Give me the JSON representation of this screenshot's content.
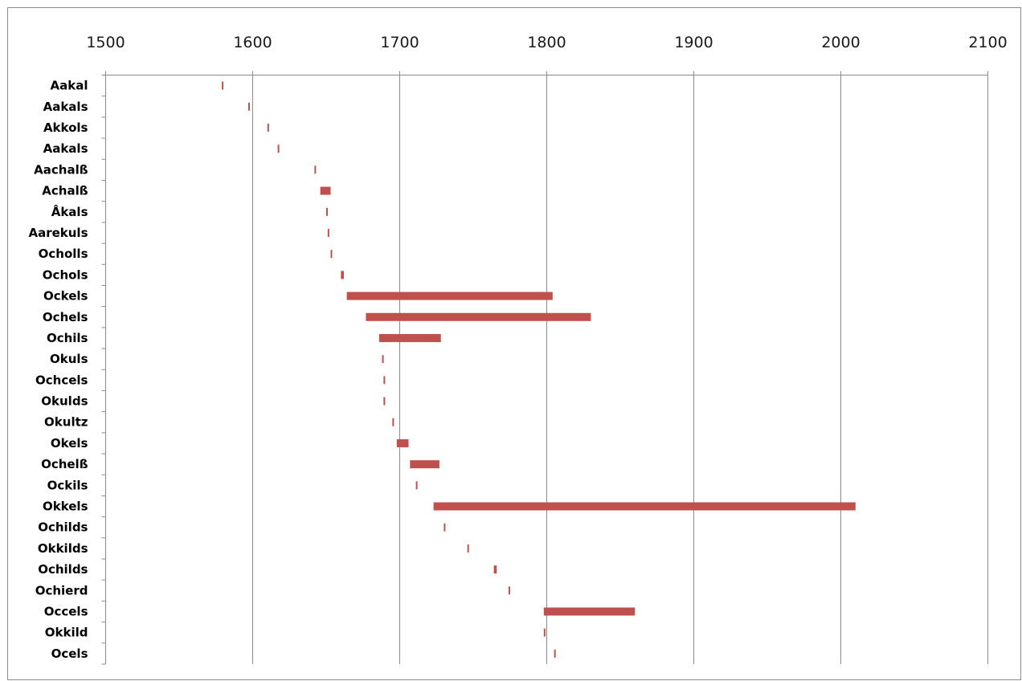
{
  "chart_data": {
    "type": "bar",
    "orientation": "horizontal-range",
    "title": "",
    "xlabel": "",
    "ylabel": "",
    "xlim": [
      1500,
      2100
    ],
    "x_ticks": [
      1500,
      1600,
      1700,
      1800,
      1900,
      2000,
      2100
    ],
    "x_tick_labels": [
      "1500",
      "1600",
      "1700",
      "1800",
      "1900",
      "2000",
      "2100"
    ],
    "grid": "vertical",
    "axis_position": "top",
    "bar_color": "#c0504d",
    "categories": [
      "Aakal",
      "Aakals",
      "Akkols",
      "Aakals",
      "Aachalß",
      "Achalß",
      "Åkals",
      "Aarekuls",
      "Ocholls",
      "Ochols",
      "Ockels",
      "Ochels",
      "Ochils",
      "Okuls",
      "Ochcels",
      "Okulds",
      "Okultz",
      "Okels",
      "Ochelß",
      "Ockils",
      "Okkels",
      "Ochilds",
      "Okkilds",
      "Ochilds",
      "Ochierd",
      "Occels",
      "Okkild",
      "Ocels"
    ],
    "ranges": [
      [
        1579,
        1580
      ],
      [
        1597,
        1598
      ],
      [
        1610,
        1611
      ],
      [
        1617,
        1618
      ],
      [
        1642,
        1643
      ],
      [
        1646,
        1653
      ],
      [
        1650,
        1651
      ],
      [
        1651,
        1652
      ],
      [
        1653,
        1654
      ],
      [
        1660,
        1662
      ],
      [
        1664,
        1804
      ],
      [
        1677,
        1830
      ],
      [
        1686,
        1728
      ],
      [
        1688,
        1689
      ],
      [
        1689,
        1690
      ],
      [
        1689,
        1690
      ],
      [
        1695,
        1696
      ],
      [
        1698,
        1706
      ],
      [
        1707,
        1727
      ],
      [
        1711,
        1712
      ],
      [
        1723,
        2010
      ],
      [
        1730,
        1731
      ],
      [
        1746,
        1747
      ],
      [
        1764,
        1766
      ],
      [
        1774,
        1775
      ],
      [
        1798,
        1860
      ],
      [
        1798,
        1799
      ],
      [
        1805,
        1806
      ]
    ]
  }
}
